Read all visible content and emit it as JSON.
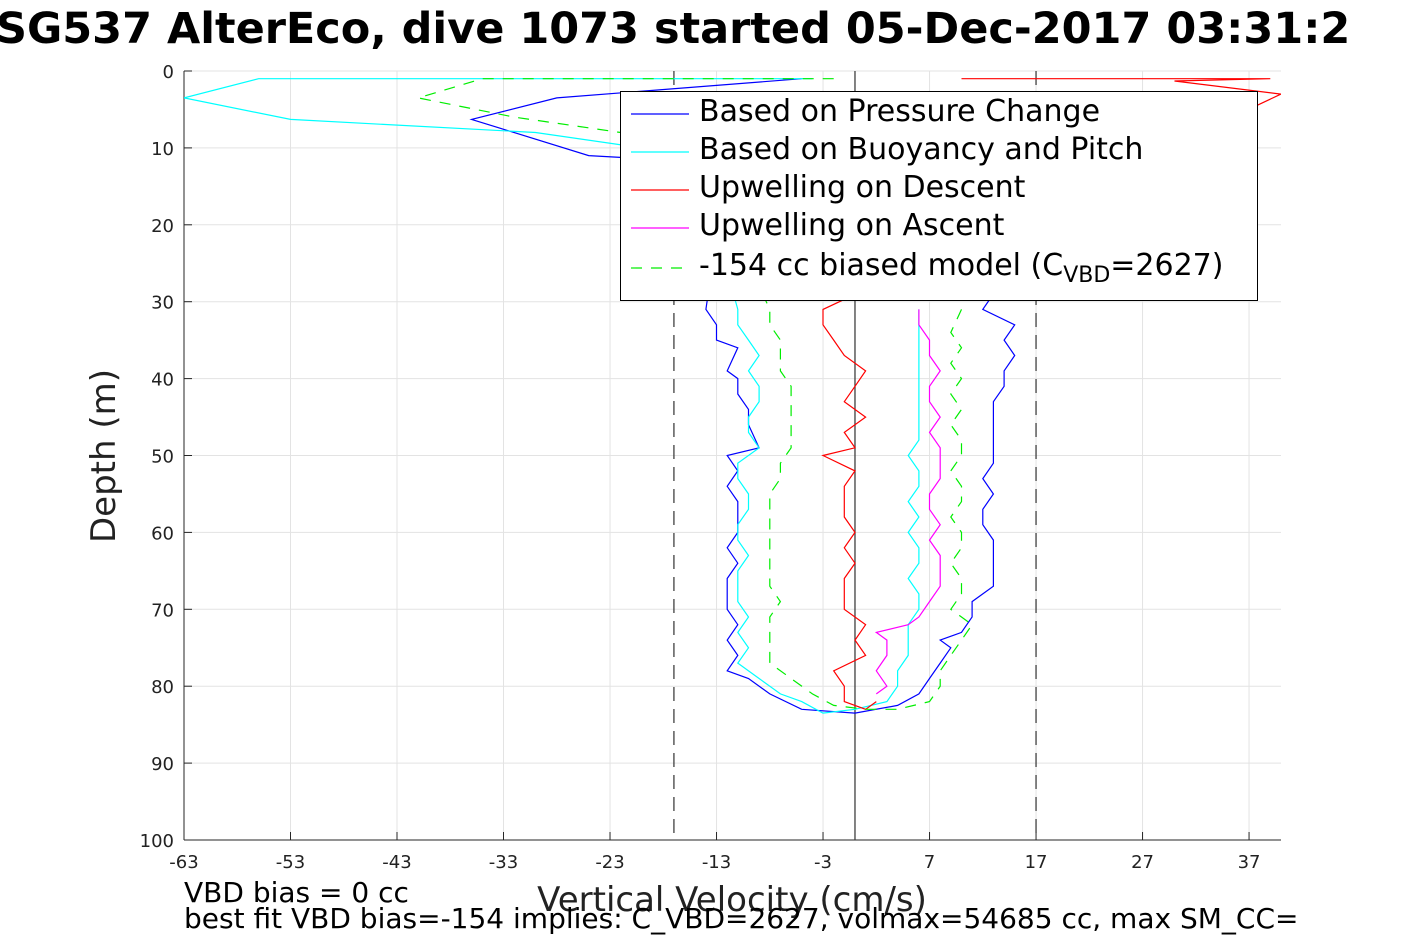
{
  "title": "SG537 AlterEco, dive 1073 started 05-Dec-2017 03:31:2",
  "notes": {
    "vbd_bias": "VBD bias = 0 cc",
    "best_fit": "best fit VBD bias=-154 implies: C_VBD=2627, volmax=54685 cc, max SM_CC="
  },
  "legend": {
    "pressure": "Based on Pressure Change",
    "buoyancy": "Based on Buoyancy and Pitch",
    "upwell_descent": "Upwelling on Descent",
    "upwell_ascent": "Upwelling on Ascent",
    "biased_prefix": "-154 cc biased model (C",
    "biased_sub": "VBD",
    "biased_suffix": "=2627)"
  },
  "chart_data": {
    "type": "line",
    "xlabel": "Vertical Velocity (cm/s)",
    "ylabel": "Depth (m)",
    "xlim": [
      -63,
      40
    ],
    "ylim": [
      0,
      100
    ],
    "y_reversed": true,
    "xticks": [
      -63,
      -53,
      -43,
      -33,
      -23,
      -13,
      -3,
      7,
      17,
      27,
      37
    ],
    "yticks": [
      0,
      10,
      20,
      30,
      40,
      50,
      60,
      70,
      80,
      90,
      100
    ],
    "grid": true,
    "legend_position": "top-right",
    "vlines": [
      {
        "x": -17,
        "style": "dashed",
        "color": "#404040"
      },
      {
        "x": 0,
        "style": "solid",
        "color": "#404040"
      },
      {
        "x": 17,
        "style": "dashed",
        "color": "#404040"
      }
    ],
    "series": [
      {
        "name": "Based on Pressure Change",
        "color": "#0000ff",
        "dash": "",
        "points": [
          [
            -5,
            1
          ],
          [
            -28,
            3.5
          ],
          [
            -36,
            6.3
          ],
          [
            -25,
            11
          ],
          [
            -12,
            12
          ],
          [
            -14,
            31
          ],
          [
            -13,
            33
          ],
          [
            -13,
            35
          ],
          [
            -11,
            36
          ],
          [
            -12,
            39
          ],
          [
            -11,
            40
          ],
          [
            -11,
            42
          ],
          [
            -10,
            44
          ],
          [
            -10,
            46
          ],
          [
            -9,
            49
          ],
          [
            -12,
            50
          ],
          [
            -11,
            52
          ],
          [
            -12,
            54
          ],
          [
            -11,
            56
          ],
          [
            -11,
            58
          ],
          [
            -11,
            60
          ],
          [
            -12,
            62
          ],
          [
            -11,
            64
          ],
          [
            -12,
            66
          ],
          [
            -12,
            68
          ],
          [
            -12,
            70
          ],
          [
            -11,
            72
          ],
          [
            -12,
            74
          ],
          [
            -11,
            76
          ],
          [
            -12,
            78
          ],
          [
            -10,
            79
          ],
          [
            -8,
            81
          ],
          [
            -5,
            83
          ],
          [
            0,
            83.5
          ],
          [
            4,
            82.5
          ],
          [
            6,
            81
          ],
          [
            7,
            79
          ],
          [
            8,
            77
          ],
          [
            9,
            75
          ],
          [
            8,
            74
          ],
          [
            10,
            73
          ],
          [
            11,
            71
          ],
          [
            11,
            69
          ],
          [
            13,
            67
          ],
          [
            13,
            65
          ],
          [
            13,
            63
          ],
          [
            13,
            61
          ],
          [
            12,
            59
          ],
          [
            12,
            57
          ],
          [
            13,
            55
          ],
          [
            12,
            53
          ],
          [
            13,
            51
          ],
          [
            13,
            49
          ],
          [
            13,
            47
          ],
          [
            13,
            45
          ],
          [
            13,
            43
          ],
          [
            14,
            41
          ],
          [
            14,
            39
          ],
          [
            15,
            37
          ],
          [
            14,
            35
          ],
          [
            15,
            33
          ],
          [
            12,
            31
          ],
          [
            13,
            29
          ]
        ]
      },
      {
        "name": "Based on Buoyancy and Pitch",
        "color": "#00ffff",
        "dash": "",
        "points": [
          [
            -4,
            1
          ],
          [
            -56,
            1
          ],
          [
            -63,
            3.5
          ],
          [
            -53,
            6.3
          ],
          [
            -30,
            8
          ],
          [
            -20,
            10
          ],
          [
            -15,
            11
          ],
          [
            -11,
            31
          ],
          [
            -11,
            33
          ],
          [
            -10,
            35
          ],
          [
            -9,
            37
          ],
          [
            -10,
            39
          ],
          [
            -9,
            41
          ],
          [
            -9,
            43
          ],
          [
            -10,
            45
          ],
          [
            -10,
            47
          ],
          [
            -9,
            49
          ],
          [
            -11,
            51
          ],
          [
            -11,
            53
          ],
          [
            -10,
            55
          ],
          [
            -10,
            57
          ],
          [
            -11,
            59
          ],
          [
            -11,
            61
          ],
          [
            -10,
            63
          ],
          [
            -11,
            65
          ],
          [
            -11,
            67
          ],
          [
            -11,
            69
          ],
          [
            -10,
            71
          ],
          [
            -11,
            73
          ],
          [
            -10,
            75
          ],
          [
            -11,
            77
          ],
          [
            -9,
            79
          ],
          [
            -7,
            81
          ],
          [
            -5,
            82
          ],
          [
            -3,
            83.5
          ],
          [
            0,
            83
          ],
          [
            3,
            82
          ],
          [
            4,
            80
          ],
          [
            4,
            78
          ],
          [
            5,
            76
          ],
          [
            5,
            74
          ],
          [
            5,
            72
          ],
          [
            6,
            70
          ],
          [
            6,
            68
          ],
          [
            5,
            66
          ],
          [
            6,
            64
          ],
          [
            6,
            62
          ],
          [
            5,
            60
          ],
          [
            6,
            58
          ],
          [
            5,
            56
          ],
          [
            6,
            54
          ],
          [
            6,
            52
          ],
          [
            5,
            50
          ],
          [
            6,
            48
          ],
          [
            6,
            46
          ],
          [
            6,
            44
          ],
          [
            6,
            42
          ],
          [
            6,
            40
          ],
          [
            6,
            38
          ],
          [
            6,
            36
          ],
          [
            6,
            34
          ],
          [
            6,
            31
          ]
        ]
      },
      {
        "name": "Upwelling on Descent",
        "color": "#ff0000",
        "dash": "",
        "points": [
          [
            10,
            1
          ],
          [
            39,
            1
          ],
          [
            30,
            1.3
          ],
          [
            40,
            3
          ],
          [
            -3,
            31
          ],
          [
            -3,
            33
          ],
          [
            -2,
            35
          ],
          [
            -1,
            37
          ],
          [
            1,
            39
          ],
          [
            0,
            41
          ],
          [
            -1,
            43
          ],
          [
            1,
            45
          ],
          [
            -1,
            47
          ],
          [
            0,
            49
          ],
          [
            -3,
            50
          ],
          [
            0,
            52
          ],
          [
            -1,
            54
          ],
          [
            -1,
            56
          ],
          [
            -1,
            58
          ],
          [
            0,
            60
          ],
          [
            -1,
            62
          ],
          [
            0,
            64
          ],
          [
            -1,
            66
          ],
          [
            -1,
            68
          ],
          [
            -1,
            70
          ],
          [
            1,
            72
          ],
          [
            0,
            74
          ],
          [
            1,
            76
          ],
          [
            -2,
            78
          ],
          [
            -1,
            80
          ],
          [
            -1,
            82
          ],
          [
            1,
            83
          ],
          [
            2,
            82
          ]
        ]
      },
      {
        "name": "Upwelling on Ascent",
        "color": "#ff00ff",
        "dash": "",
        "points": [
          [
            2,
            81
          ],
          [
            3,
            80
          ],
          [
            2,
            78
          ],
          [
            3,
            76
          ],
          [
            3,
            74
          ],
          [
            2,
            73
          ],
          [
            5,
            72
          ],
          [
            6,
            71
          ],
          [
            7,
            69
          ],
          [
            8,
            67
          ],
          [
            8,
            65
          ],
          [
            8,
            63
          ],
          [
            7,
            61
          ],
          [
            8,
            59
          ],
          [
            7,
            57
          ],
          [
            7,
            55
          ],
          [
            8,
            53
          ],
          [
            8,
            51
          ],
          [
            8,
            49
          ],
          [
            7,
            47
          ],
          [
            8,
            45
          ],
          [
            7,
            43
          ],
          [
            7,
            41
          ],
          [
            8,
            39
          ],
          [
            7,
            37
          ],
          [
            7,
            35
          ],
          [
            6,
            33
          ],
          [
            6,
            31
          ]
        ]
      },
      {
        "name": "-154 cc biased model (C_VBD=2627)",
        "color": "#00ee00",
        "dash": "11,9",
        "points": [
          [
            -2,
            1
          ],
          [
            -35,
            1
          ],
          [
            -41,
            3.5
          ],
          [
            -32,
            6
          ],
          [
            -22,
            8
          ],
          [
            -15,
            10
          ],
          [
            -8,
            31
          ],
          [
            -8,
            33
          ],
          [
            -7,
            35
          ],
          [
            -7,
            37
          ],
          [
            -7,
            39
          ],
          [
            -6,
            41
          ],
          [
            -6,
            43
          ],
          [
            -6,
            45
          ],
          [
            -6,
            47
          ],
          [
            -6,
            49
          ],
          [
            -7,
            51
          ],
          [
            -7,
            53
          ],
          [
            -8,
            55
          ],
          [
            -8,
            57
          ],
          [
            -8,
            59
          ],
          [
            -8,
            61
          ],
          [
            -8,
            63
          ],
          [
            -8,
            65
          ],
          [
            -8,
            67
          ],
          [
            -7,
            69
          ],
          [
            -8,
            71
          ],
          [
            -8,
            73
          ],
          [
            -8,
            75
          ],
          [
            -8,
            77
          ],
          [
            -6,
            79
          ],
          [
            -4,
            81
          ],
          [
            -2,
            82.5
          ],
          [
            1,
            83
          ],
          [
            4,
            83
          ],
          [
            7,
            82
          ],
          [
            8,
            80
          ],
          [
            8,
            78
          ],
          [
            9,
            76
          ],
          [
            10,
            74
          ],
          [
            11,
            72
          ],
          [
            9,
            70
          ],
          [
            10,
            68
          ],
          [
            10,
            66
          ],
          [
            9,
            64
          ],
          [
            10,
            62
          ],
          [
            10,
            60
          ],
          [
            9,
            58
          ],
          [
            10,
            56
          ],
          [
            10,
            54
          ],
          [
            9,
            52
          ],
          [
            10,
            50
          ],
          [
            10,
            48
          ],
          [
            9,
            46
          ],
          [
            10,
            44
          ],
          [
            9,
            42
          ],
          [
            10,
            40
          ],
          [
            9,
            38
          ],
          [
            10,
            36
          ],
          [
            9,
            34
          ],
          [
            10,
            31
          ]
        ]
      }
    ]
  }
}
